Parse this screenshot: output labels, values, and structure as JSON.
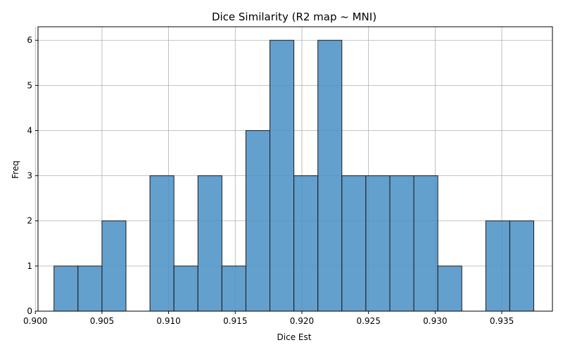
{
  "chart_data": {
    "type": "bar",
    "subtype": "histogram",
    "title": "Dice Similarity (R2 map ~ MNI)",
    "xlabel": "Dice Est",
    "ylabel": "Freq",
    "xlim": [
      0.9002,
      0.9388
    ],
    "ylim": [
      0,
      6.3
    ],
    "xticks": [
      "0.900",
      "0.905",
      "0.910",
      "0.915",
      "0.920",
      "0.925",
      "0.930",
      "0.935"
    ],
    "yticks": [
      "0",
      "1",
      "2",
      "3",
      "4",
      "5",
      "6"
    ],
    "grid": true,
    "bar_color": "#4f93c7",
    "bins": [
      {
        "x0": 0.9014,
        "x1": 0.9032,
        "count": 1
      },
      {
        "x0": 0.9032,
        "x1": 0.905,
        "count": 1
      },
      {
        "x0": 0.905,
        "x1": 0.9068,
        "count": 2
      },
      {
        "x0": 0.9068,
        "x1": 0.9086,
        "count": 0
      },
      {
        "x0": 0.9086,
        "x1": 0.9104,
        "count": 3
      },
      {
        "x0": 0.9104,
        "x1": 0.9122,
        "count": 1
      },
      {
        "x0": 0.9122,
        "x1": 0.914,
        "count": 3
      },
      {
        "x0": 0.914,
        "x1": 0.9158,
        "count": 1
      },
      {
        "x0": 0.9158,
        "x1": 0.9176,
        "count": 4
      },
      {
        "x0": 0.9176,
        "x1": 0.9194,
        "count": 6
      },
      {
        "x0": 0.9194,
        "x1": 0.9212,
        "count": 3
      },
      {
        "x0": 0.9212,
        "x1": 0.923,
        "count": 6
      },
      {
        "x0": 0.923,
        "x1": 0.9248,
        "count": 3
      },
      {
        "x0": 0.9248,
        "x1": 0.9266,
        "count": 3
      },
      {
        "x0": 0.9266,
        "x1": 0.9284,
        "count": 3
      },
      {
        "x0": 0.9284,
        "x1": 0.9302,
        "count": 3
      },
      {
        "x0": 0.9302,
        "x1": 0.932,
        "count": 1
      },
      {
        "x0": 0.932,
        "x1": 0.9338,
        "count": 0
      },
      {
        "x0": 0.9338,
        "x1": 0.9356,
        "count": 2
      },
      {
        "x0": 0.9356,
        "x1": 0.9374,
        "count": 2
      }
    ]
  }
}
